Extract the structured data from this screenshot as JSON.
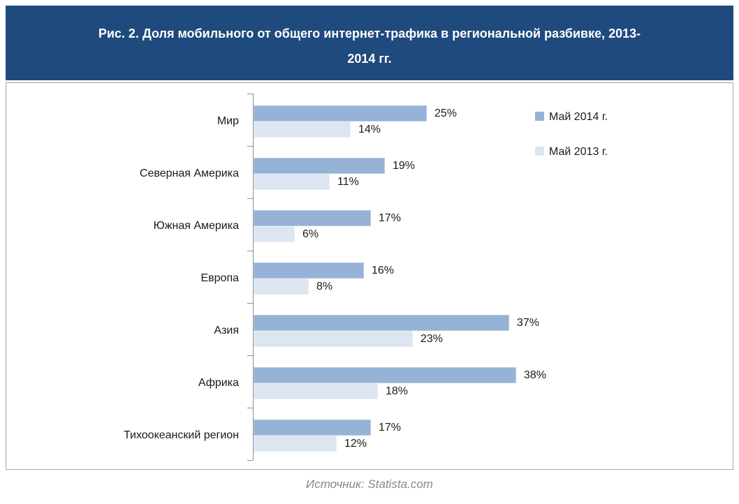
{
  "title": "Рис. 2. Доля мобильного от общего интернет-трафика в региональной разбивке, 2013-2014 гг.",
  "title_lines": [
    "Рис. 2. Доля мобильного от общего интернет-трафика в региональной разбивке, 2013-",
    "2014 гг."
  ],
  "source": "Источник: Statista.com",
  "colors": {
    "header_bg": "#1F4A7D",
    "header_text": "#FFFFFF",
    "series_2014": "#95B3D7",
    "series_2013": "#DCE6F1",
    "axis": "#8F8F8F",
    "panel_border": "#A6A6A6",
    "label_text": "#1A1A1A",
    "source_text": "#878787"
  },
  "legend": {
    "position": "top-right",
    "items": [
      {
        "label": "Май 2014 г.",
        "color": "#95B3D7"
      },
      {
        "label": "Май 2013 г.",
        "color": "#DCE6F1"
      }
    ]
  },
  "chart_data": {
    "type": "bar",
    "orientation": "horizontal",
    "title": "Рис. 2. Доля мобильного от общего интернет-трафика в региональной разбивке, 2013-2014 гг.",
    "categories": [
      "Мир",
      "Северная Америка",
      "Южная Америка",
      "Европа",
      "Азия",
      "Африка",
      "Тихоокеанский регион"
    ],
    "series": [
      {
        "name": "Май 2014 г.",
        "color": "#95B3D7",
        "values": [
          25,
          19,
          17,
          16,
          37,
          38,
          17
        ],
        "labels": [
          "25%",
          "19%",
          "17%",
          "16%",
          "37%",
          "38%",
          "17%"
        ]
      },
      {
        "name": "Май 2013 г.",
        "color": "#DCE6F1",
        "values": [
          14,
          11,
          6,
          8,
          23,
          18,
          12
        ],
        "labels": [
          "14%",
          "11%",
          "6%",
          "8%",
          "23%",
          "18%",
          "12%"
        ]
      }
    ],
    "xlim": [
      0,
      40
    ],
    "value_suffix": "%",
    "grid": false,
    "data_labels": true,
    "legend_position": "top-right",
    "source": "Источник: Statista.com"
  }
}
